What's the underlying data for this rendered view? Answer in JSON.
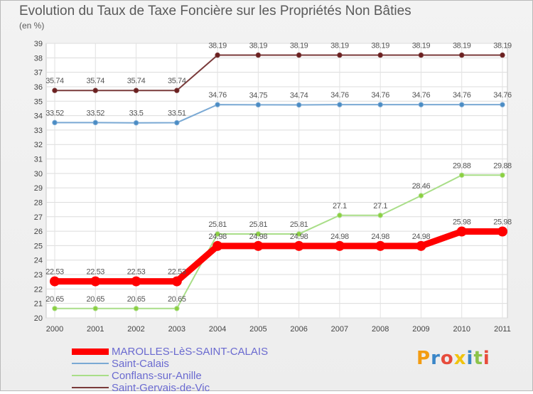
{
  "header": {
    "title": "Evolution du Taux de Taxe Foncière sur les Propriétés Non Bâties",
    "subtitle": "(en %)"
  },
  "brand": {
    "text": "Proxiti",
    "colors": [
      "#f39c12",
      "#3a86c8",
      "#e74c3c",
      "#f1c40f",
      "#3a86c8",
      "#8bc34a",
      "#e74c3c"
    ]
  },
  "chart_data": {
    "type": "line",
    "x": [
      "2000",
      "2001",
      "2002",
      "2003",
      "2004",
      "2005",
      "2006",
      "2007",
      "2008",
      "2009",
      "2010",
      "2011"
    ],
    "ylim": [
      20,
      39
    ],
    "yticks": [
      20,
      21,
      22,
      23,
      24,
      25,
      26,
      27,
      28,
      29,
      30,
      31,
      32,
      33,
      34,
      35,
      36,
      37,
      38,
      39
    ],
    "grid": true,
    "legend_position": "bottom-left",
    "series": [
      {
        "name": "MAROLLES-LèS-SAINT-CALAIS",
        "color": "#ff0000",
        "values": [
          22.53,
          22.53,
          22.53,
          22.53,
          24.98,
          24.98,
          24.98,
          24.98,
          24.98,
          24.98,
          25.98,
          25.98
        ],
        "labels": [
          "22.53",
          "22.53",
          "22.53",
          "22.53",
          "24.98",
          "24.98",
          "24.98",
          "24.98",
          "24.98",
          "24.98",
          "25.98",
          "25.98"
        ]
      },
      {
        "name": "Saint-Calais",
        "color": "#7aa9d4",
        "values": [
          33.52,
          33.52,
          33.5,
          33.51,
          34.76,
          34.75,
          34.74,
          34.76,
          34.76,
          34.76,
          34.76,
          34.76
        ],
        "labels": [
          "33.52",
          "33.52",
          "33.5",
          "33.51",
          "34.76",
          "34.75",
          "34.74",
          "34.76",
          "34.76",
          "34.76",
          "34.76",
          "34.76"
        ]
      },
      {
        "name": "Conflans-sur-Anille",
        "color": "#a9de88",
        "values": [
          20.65,
          20.65,
          20.65,
          20.65,
          25.81,
          25.81,
          25.81,
          27.1,
          27.1,
          28.46,
          29.88,
          29.88
        ],
        "labels": [
          "20.65",
          "20.65",
          "20.65",
          "20.65",
          "25.81",
          "25.81",
          "25.81",
          "27.1",
          "27.1",
          "28.46",
          "29.88",
          "29.88"
        ]
      },
      {
        "name": "Saint-Gervais-de-Vic",
        "color": "#7a3a3a",
        "values": [
          35.74,
          35.74,
          35.74,
          35.74,
          38.19,
          38.19,
          38.19,
          38.19,
          38.19,
          38.19,
          38.19,
          38.19
        ],
        "labels": [
          "35.74",
          "35.74",
          "35.74",
          "35.74",
          "38.19",
          "38.19",
          "38.19",
          "38.19",
          "38.19",
          "38.19",
          "38.19",
          "38.19"
        ]
      }
    ]
  }
}
